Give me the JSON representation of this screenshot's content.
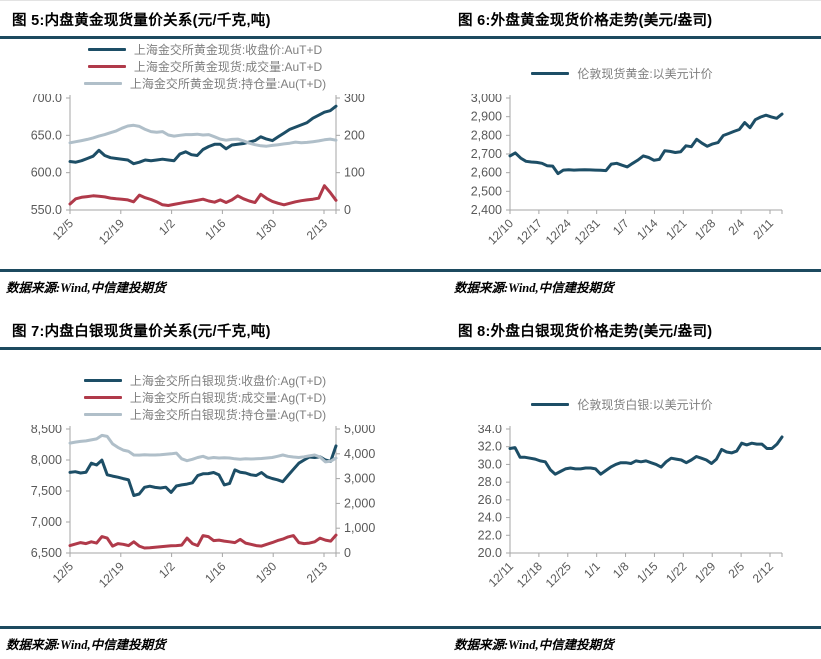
{
  "colors": {
    "line_primary": "#1d4e66",
    "line_secondary": "#b03a4a",
    "line_tertiary": "#b0bfc9",
    "rule": "#1c4a5f",
    "axis": "#a6a6a6",
    "tick_text": "#595959",
    "legend_text": "#7f7f7f"
  },
  "chart_data": [
    {
      "id": "figure-5",
      "type": "line",
      "title": "图 5:内盘黄金现货量价关系(元/千克,吨)",
      "source": "数据来源:Wind,中信建投期货",
      "legend_position": "top-center",
      "grid": false,
      "x_tick_labels": [
        "12/5",
        "12/19",
        "1/2",
        "1/16",
        "1/30",
        "2/13"
      ],
      "left_axis": {
        "min": 550,
        "max": 700,
        "tick_labels": [
          "550.0",
          "600.0",
          "650.0",
          "700.0"
        ]
      },
      "right_axis": {
        "min": 0,
        "max": 300,
        "tick_labels": [
          "0",
          "100",
          "200",
          "300"
        ]
      },
      "series": [
        {
          "name": "上海金交所黄金现货:收盘价:AuT+D",
          "axis": "left",
          "color": "#1d4e66",
          "values": [
            615,
            614,
            616,
            619,
            622,
            630,
            623,
            620,
            619,
            618,
            617,
            612,
            614,
            617,
            616,
            617,
            618,
            617,
            616,
            625,
            628,
            624,
            623,
            631,
            635,
            638,
            638,
            632,
            637,
            638,
            639,
            641,
            643,
            648,
            645,
            643,
            648,
            653,
            658,
            661,
            664,
            667,
            673,
            677,
            681,
            683,
            689
          ]
        },
        {
          "name": "上海金交所黄金现货:成交量:AuT+D",
          "axis": "right",
          "color": "#b03a4a",
          "values": [
            16,
            30,
            34,
            36,
            38,
            37,
            35,
            32,
            30,
            29,
            27,
            22,
            40,
            33,
            28,
            22,
            14,
            12,
            15,
            18,
            21,
            23,
            26,
            29,
            24,
            21,
            27,
            20,
            27,
            38,
            30,
            24,
            20,
            42,
            31,
            23,
            18,
            14,
            18,
            22,
            25,
            27,
            29,
            32,
            65,
            47,
            26
          ]
        },
        {
          "name": "上海金交所黄金现货:持仓量:Au(T+D)",
          "axis": "right",
          "color": "#b0bfc9",
          "values": [
            180,
            183,
            186,
            189,
            193,
            198,
            202,
            207,
            212,
            219,
            225,
            227,
            224,
            216,
            210,
            208,
            210,
            201,
            198,
            200,
            202,
            202,
            203,
            201,
            202,
            196,
            190,
            187,
            189,
            190,
            185,
            179,
            175,
            172,
            171,
            173,
            175,
            177,
            179,
            182,
            180,
            181,
            183,
            185,
            188,
            190,
            187
          ]
        }
      ]
    },
    {
      "id": "figure-6",
      "type": "line",
      "title": "图 6:外盘黄金现货价格走势(美元/盎司)",
      "source": "数据来源:Wind,中信建投期货",
      "legend_position": "top-center",
      "grid": false,
      "x_tick_labels": [
        "12/10",
        "12/17",
        "12/24",
        "12/31",
        "1/7",
        "1/14",
        "1/21",
        "1/28",
        "2/4",
        "2/11"
      ],
      "left_axis": {
        "min": 2400,
        "max": 3000,
        "tick_labels": [
          "2,400",
          "2,500",
          "2,600",
          "2,700",
          "2,800",
          "2,900",
          "3,000"
        ]
      },
      "right_axis": null,
      "series": [
        {
          "name": "伦敦现货黄金:以美元计价",
          "axis": "left",
          "color": "#1d4e66",
          "values": [
            2690,
            2706,
            2678,
            2661,
            2657,
            2655,
            2650,
            2637,
            2635,
            2595,
            2614,
            2616,
            2614,
            2615,
            2616,
            2615,
            2614,
            2613,
            2611,
            2646,
            2650,
            2640,
            2631,
            2650,
            2668,
            2690,
            2681,
            2666,
            2671,
            2717,
            2714,
            2708,
            2712,
            2744,
            2739,
            2779,
            2758,
            2741,
            2754,
            2761,
            2799,
            2810,
            2821,
            2831,
            2868,
            2841,
            2884,
            2898,
            2908,
            2899,
            2891,
            2914
          ]
        }
      ]
    },
    {
      "id": "figure-7",
      "type": "line",
      "title": "图 7:内盘白银现货量价关系(元/千克,吨)",
      "source": "数据来源:Wind,中信建投期货",
      "legend_position": "top-center",
      "grid": false,
      "x_tick_labels": [
        "12/5",
        "12/19",
        "1/2",
        "1/16",
        "1/30",
        "2/13"
      ],
      "left_axis": {
        "min": 6500,
        "max": 8500,
        "tick_labels": [
          "6,500",
          "7,000",
          "7,500",
          "8,000",
          "8,500"
        ]
      },
      "right_axis": {
        "min": 0,
        "max": 5000,
        "tick_labels": [
          "0",
          "1,000",
          "2,000",
          "3,000",
          "4,000",
          "5,000"
        ]
      },
      "series": [
        {
          "name": "上海金交所白银现货:收盘价:Ag(T+D)",
          "axis": "left",
          "color": "#1d4e66",
          "values": [
            7800,
            7812,
            7790,
            7802,
            7948,
            7920,
            7998,
            7762,
            7740,
            7722,
            7700,
            7680,
            7428,
            7452,
            7560,
            7578,
            7558,
            7548,
            7562,
            7478,
            7580,
            7598,
            7612,
            7632,
            7748,
            7778,
            7780,
            7798,
            7760,
            7598,
            7622,
            7840,
            7802,
            7790,
            7762,
            7750,
            7798,
            7730,
            7702,
            7680,
            7650,
            7752,
            7850,
            7948,
            8000,
            8048,
            8040,
            8052,
            8000,
            7978,
            8228
          ]
        },
        {
          "name": "上海金交所白银现货:成交量:Ag(T+D)",
          "axis": "right",
          "color": "#b03a4a",
          "values": [
            300,
            360,
            420,
            380,
            450,
            400,
            660,
            600,
            280,
            380,
            350,
            300,
            450,
            280,
            200,
            210,
            230,
            250,
            270,
            290,
            300,
            320,
            600,
            380,
            300,
            700,
            660,
            500,
            520,
            480,
            450,
            420,
            550,
            400,
            350,
            300,
            280,
            350,
            420,
            500,
            560,
            650,
            700,
            420,
            380,
            400,
            450,
            600,
            520,
            480,
            720
          ]
        },
        {
          "name": "上海金交所白银现货:持仓量:Ag(T+D)",
          "axis": "right",
          "color": "#b0bfc9",
          "values": [
            4430,
            4470,
            4500,
            4520,
            4560,
            4600,
            4740,
            4700,
            4400,
            4260,
            4150,
            4100,
            3950,
            3948,
            3960,
            3950,
            3952,
            3960,
            3980,
            4000,
            4030,
            3800,
            3720,
            3780,
            3850,
            3900,
            3820,
            3850,
            3830,
            3840,
            3830,
            3800,
            3780,
            3800,
            3790,
            3800,
            3810,
            3830,
            3850,
            3900,
            3950,
            3900,
            3870,
            3850,
            3880,
            3920,
            3950,
            3870,
            3675,
            3700,
            3825
          ]
        }
      ]
    },
    {
      "id": "figure-8",
      "type": "line",
      "title": "图 8:外盘白银现货价格走势(美元/盎司)",
      "source": "数据来源:Wind,中信建投期货",
      "legend_position": "top-center",
      "grid": false,
      "x_tick_labels": [
        "12/11",
        "12/18",
        "12/25",
        "1/1",
        "1/8",
        "1/15",
        "1/22",
        "1/29",
        "2/5",
        "2/12"
      ],
      "left_axis": {
        "min": 20,
        "max": 34,
        "tick_labels": [
          "20.0",
          "22.0",
          "24.0",
          "26.0",
          "28.0",
          "30.0",
          "32.0",
          "34.0"
        ]
      },
      "right_axis": null,
      "series": [
        {
          "name": "伦敦现货白银:以美元计价",
          "axis": "left",
          "color": "#1d4e66",
          "values": [
            31.8,
            31.9,
            30.8,
            30.8,
            30.7,
            30.6,
            30.4,
            30.3,
            29.4,
            28.9,
            29.2,
            29.5,
            29.6,
            29.5,
            29.5,
            29.6,
            29.6,
            29.5,
            28.9,
            29.3,
            29.7,
            30.0,
            30.2,
            30.2,
            30.1,
            30.4,
            30.3,
            30.4,
            30.2,
            30.0,
            29.7,
            30.3,
            30.7,
            30.6,
            30.5,
            30.2,
            30.5,
            30.9,
            30.7,
            30.5,
            30.1,
            30.6,
            31.7,
            31.4,
            31.3,
            31.5,
            32.4,
            32.2,
            32.4,
            32.3,
            32.3,
            31.8,
            31.8,
            32.3,
            33.1
          ]
        }
      ]
    }
  ]
}
